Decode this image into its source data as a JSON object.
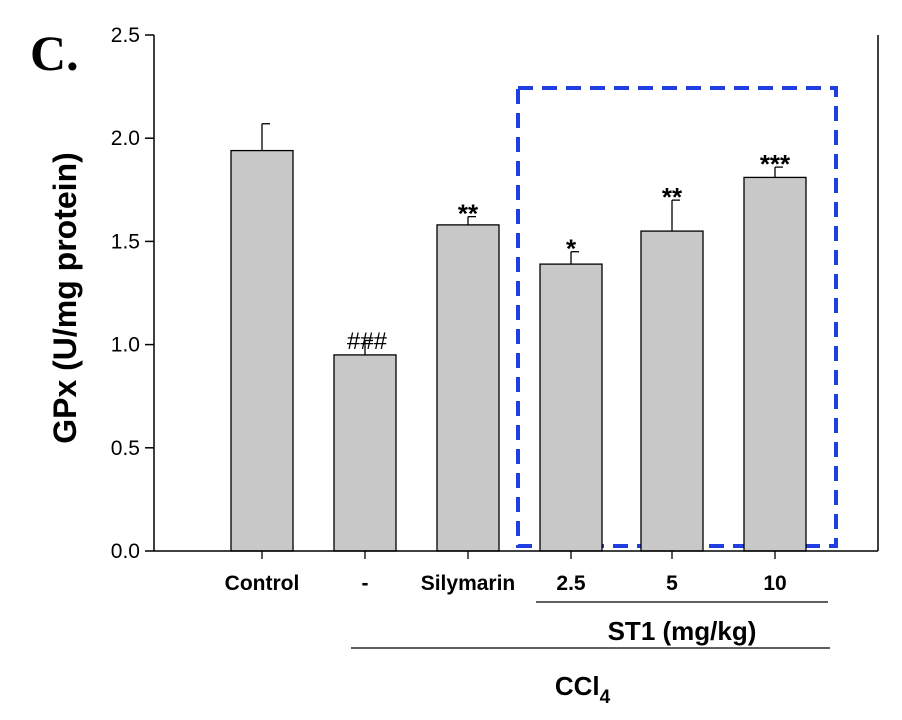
{
  "panel_label": "C.",
  "highlight_color": "#1f3fe0",
  "bar_color": "#c8c8c8",
  "chart_data": {
    "type": "bar",
    "ylabel": "GPx (U/mg protein)",
    "ylim": [
      0,
      2.5
    ],
    "yticks": [
      "0.0",
      "0.5",
      "1.0",
      "1.5",
      "2.0",
      "2.5"
    ],
    "yticks_values": [
      0,
      0.5,
      1.0,
      1.5,
      2.0,
      2.5
    ],
    "categories": [
      "Control",
      "-",
      "Silymarin",
      "2.5",
      "5",
      "10"
    ],
    "values": [
      1.94,
      0.95,
      1.58,
      1.39,
      1.55,
      1.81
    ],
    "errors": [
      0.13,
      0.07,
      0.04,
      0.06,
      0.15,
      0.05
    ],
    "annotations": [
      "",
      "###",
      "**",
      "*",
      "**",
      "***"
    ],
    "group_st1": {
      "label": "ST1 (mg/kg)",
      "from": 3,
      "to": 5
    },
    "group_ccl4": {
      "label_main": "CCl",
      "label_sub": "4",
      "from": 1,
      "to": 5
    },
    "highlight": {
      "from": 3,
      "to": 5,
      "style": "dashed"
    }
  }
}
